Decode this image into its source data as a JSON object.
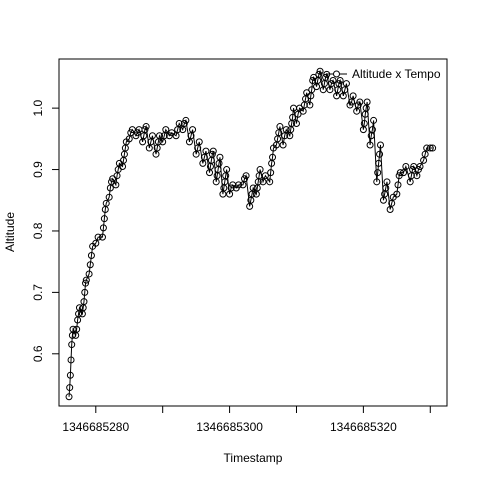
{
  "chart_data": {
    "type": "line",
    "title": "",
    "xlabel": "Timestamp",
    "ylabel": "Altitude",
    "xlim": [
      1346685274.5,
      1346685332.5
    ],
    "ylim": [
      0.515,
      1.08
    ],
    "grid": false,
    "legend_position": "top-right",
    "x_ticks": [
      1346685280,
      1346685290,
      1346685300,
      1346685310,
      1346685320,
      1346685330
    ],
    "x_tick_labels": [
      "1346685280",
      "",
      "1346685300",
      "",
      "1346685320",
      ""
    ],
    "y_ticks": [
      0.6,
      0.7,
      0.8,
      0.9,
      1.0
    ],
    "y_tick_labels": [
      "0.6",
      "0.7",
      "0.8",
      "0.9",
      "1.0"
    ],
    "series": [
      {
        "name": "Altitude x Tempo",
        "marker": "open-circle",
        "line": "solid",
        "color": "#000000",
        "groups": [
          [
            1346685276.0,
            [
              0.53,
              0.545,
              0.565,
              0.59,
              0.615,
              0.63,
              0.64
            ]
          ],
          [
            1346685277.0,
            [
              0.63,
              0.64,
              0.655,
              0.665,
              0.675
            ]
          ],
          [
            1346685278.0,
            [
              0.665,
              0.675,
              0.685,
              0.7,
              0.715,
              0.72
            ]
          ],
          [
            1346685279.0,
            [
              0.73,
              0.745,
              0.76,
              0.775
            ]
          ],
          [
            1346685280.0,
            [
              0.78,
              0.79
            ]
          ],
          [
            1346685281.0,
            [
              0.79,
              0.805,
              0.82,
              0.835,
              0.845
            ]
          ],
          [
            1346685282.0,
            [
              0.855,
              0.87,
              0.88,
              0.885
            ]
          ],
          [
            1346685283.0,
            [
              0.875,
              0.89,
              0.9,
              0.91
            ]
          ],
          [
            1346685284.0,
            [
              0.905,
              0.915,
              0.925,
              0.935,
              0.945
            ]
          ],
          [
            1346685285.0,
            [
              0.95,
              0.96,
              0.965
            ]
          ],
          [
            1346685286.0,
            [
              0.955,
              0.96,
              0.965
            ]
          ],
          [
            1346685287.0,
            [
              0.945,
              0.955,
              0.965,
              0.97
            ]
          ],
          [
            1346685288.0,
            [
              0.935,
              0.945,
              0.955
            ]
          ],
          [
            1346685289.0,
            [
              0.925,
              0.935,
              0.945,
              0.955
            ]
          ],
          [
            1346685290.0,
            [
              0.945,
              0.955,
              0.965
            ]
          ],
          [
            1346685291.0,
            [
              0.955,
              0.96
            ]
          ],
          [
            1346685292.0,
            [
              0.955,
              0.965,
              0.975
            ]
          ],
          [
            1346685293.0,
            [
              0.965,
              0.975,
              0.98
            ]
          ],
          [
            1346685294.0,
            [
              0.945,
              0.955,
              0.965
            ]
          ],
          [
            1346685295.0,
            [
              0.925,
              0.935,
              0.945
            ]
          ],
          [
            1346685296.0,
            [
              0.91,
              0.92,
              0.93
            ]
          ],
          [
            1346685297.0,
            [
              0.895,
              0.905,
              0.915,
              0.925,
              0.93
            ]
          ],
          [
            1346685298.0,
            [
              0.88,
              0.89,
              0.9,
              0.91,
              0.92
            ]
          ],
          [
            1346685299.0,
            [
              0.86,
              0.87,
              0.88,
              0.89,
              0.9
            ]
          ],
          [
            1346685300.0,
            [
              0.86,
              0.87,
              0.875
            ]
          ],
          [
            1346685301.0,
            [
              0.87,
              0.875
            ]
          ],
          [
            1346685302.0,
            [
              0.875,
              0.885,
              0.89
            ]
          ],
          [
            1346685303.0,
            [
              0.84,
              0.85,
              0.86,
              0.87
            ]
          ],
          [
            1346685304.0,
            [
              0.86,
              0.87,
              0.88,
              0.89,
              0.9
            ]
          ],
          [
            1346685305.0,
            [
              0.88,
              0.89
            ]
          ],
          [
            1346685306.0,
            [
              0.88,
              0.895,
              0.91,
              0.92,
              0.935
            ]
          ],
          [
            1346685307.0,
            [
              0.94,
              0.95,
              0.96,
              0.97
            ]
          ],
          [
            1346685308.0,
            [
              0.94,
              0.955,
              0.965
            ]
          ],
          [
            1346685309.0,
            [
              0.955,
              0.965,
              0.975,
              0.985,
              1.0
            ]
          ],
          [
            1346685310.0,
            [
              0.975,
              0.99,
              1.0
            ]
          ],
          [
            1346685311.0,
            [
              0.995,
              1.005,
              1.015,
              1.025
            ]
          ],
          [
            1346685312.0,
            [
              1.005,
              1.02,
              1.03,
              1.045,
              1.05
            ]
          ],
          [
            1346685313.0,
            [
              1.035,
              1.045,
              1.055,
              1.06
            ]
          ],
          [
            1346685314.0,
            [
              1.03,
              1.04,
              1.05,
              1.055
            ]
          ],
          [
            1346685315.0,
            [
              1.03,
              1.04,
              1.045
            ]
          ],
          [
            1346685316.0,
            [
              1.02,
              1.03,
              1.04,
              1.045
            ]
          ],
          [
            1346685317.0,
            [
              1.02,
              1.03,
              1.04
            ]
          ],
          [
            1346685318.0,
            [
              1.005,
              1.01,
              1.02
            ]
          ],
          [
            1346685319.0,
            [
              0.995,
              1.005,
              1.01
            ]
          ],
          [
            1346685320.0,
            [
              0.965,
              0.975,
              0.99,
              1.0,
              1.01
            ]
          ],
          [
            1346685321.0,
            [
              0.94,
              0.955,
              0.965,
              0.98
            ]
          ],
          [
            1346685322.0,
            [
              0.88,
              0.895,
              0.91,
              0.925,
              0.94
            ]
          ],
          [
            1346685323.0,
            [
              0.85,
              0.86,
              0.87,
              0.88
            ]
          ],
          [
            1346685324.0,
            [
              0.835,
              0.845,
              0.855
            ]
          ],
          [
            1346685325.0,
            [
              0.86,
              0.875,
              0.89,
              0.895
            ]
          ],
          [
            1346685326.0,
            [
              0.895,
              0.905
            ]
          ],
          [
            1346685327.0,
            [
              0.88,
              0.89,
              0.9,
              0.905
            ]
          ],
          [
            1346685328.0,
            [
              0.89,
              0.9,
              0.905
            ]
          ],
          [
            1346685329.0,
            [
              0.915,
              0.925,
              0.935
            ]
          ],
          [
            1346685330.0,
            [
              0.935,
              0.935
            ]
          ]
        ]
      }
    ]
  }
}
